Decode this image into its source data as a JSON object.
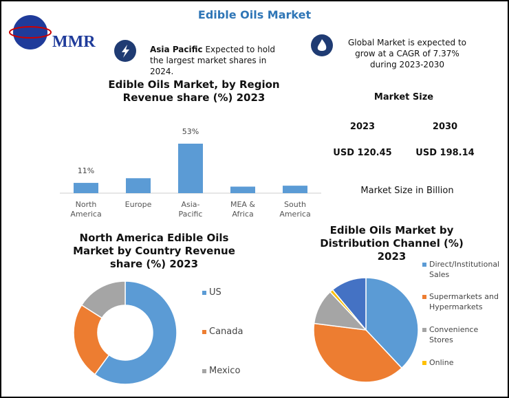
{
  "header": {
    "title": "Edible Oils Market",
    "logo": "MMR"
  },
  "callouts": [
    {
      "bold": "Asia Pacific",
      "text": "Expected to hold the largest market shares in 2024."
    },
    {
      "bold": null,
      "text": "Global Market is expected to grow at a CAGR of 7.37% during 2023-2030"
    }
  ],
  "market_size": {
    "heading": "Market Size",
    "years": [
      "2023",
      "2030"
    ],
    "values": [
      "USD 120.45",
      "USD 198.14"
    ],
    "note": "Market Size in Billion"
  },
  "chart_data": [
    {
      "type": "bar",
      "title": "Edible Oils Market, by Region Revenue share (%) 2023",
      "categories": [
        "North America",
        "Europe",
        "Asia-Pacific",
        "MEA & Africa",
        "South America"
      ],
      "values": [
        11,
        16,
        53,
        7,
        8
      ],
      "value_labels": [
        "11%",
        null,
        "53%",
        null,
        null
      ],
      "color": "#5b9bd5"
    },
    {
      "type": "donut",
      "title": "North America Edible Oils Market by Country Revenue share (%) 2023",
      "categories": [
        "US",
        "Canada",
        "Mexico"
      ],
      "values": [
        60,
        24,
        16
      ],
      "colors": [
        "#5b9bd5",
        "#ed7d31",
        "#a5a5a5"
      ]
    },
    {
      "type": "pie",
      "title": "Edible Oils Market by Distribution Channel (%) 2023",
      "categories": [
        "Direct/Institutional Sales",
        "Supermarkets and Hypermarkets",
        "Convenience Stores",
        "Online",
        null
      ],
      "values": [
        38,
        39,
        11,
        1,
        11
      ],
      "colors": [
        "#5b9bd5",
        "#ed7d31",
        "#a5a5a5",
        "#ffc000",
        "#4472c4"
      ]
    }
  ]
}
